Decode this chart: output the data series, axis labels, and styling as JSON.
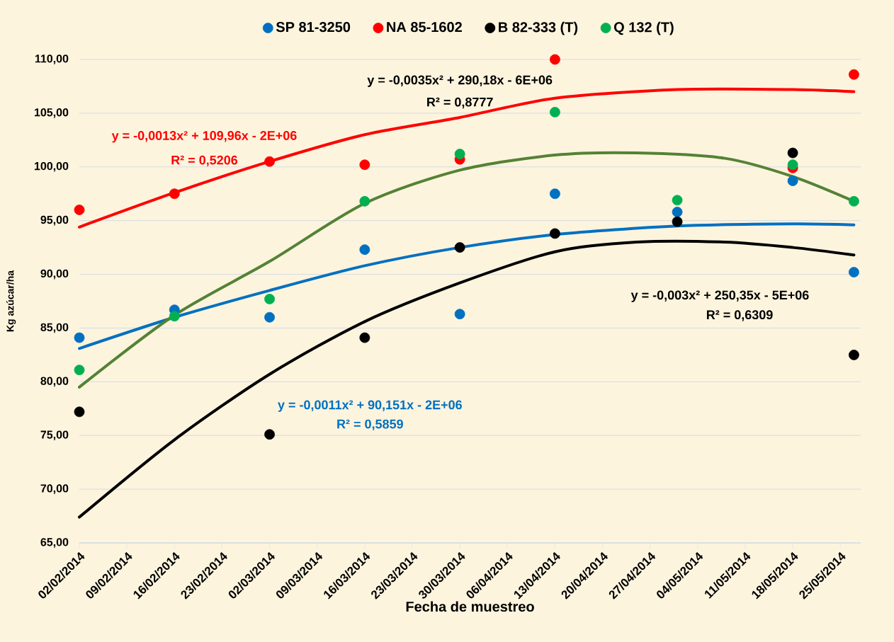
{
  "chart_data": {
    "type": "scatter",
    "xlabel": "Fecha de muestreo",
    "ylabel": "Kg azúcar/ha",
    "xlim": [
      "2014-02-02",
      "2014-05-28"
    ],
    "ylim": [
      65,
      110
    ],
    "xticks": [
      {
        "value": "2014-02-02",
        "label": "02/02/2014"
      },
      {
        "value": "2014-02-09",
        "label": "09/02/2014"
      },
      {
        "value": "2014-02-16",
        "label": "16/02/2014"
      },
      {
        "value": "2014-02-23",
        "label": "23/02/2014"
      },
      {
        "value": "2014-03-02",
        "label": "02/03/2014"
      },
      {
        "value": "2014-03-09",
        "label": "09/03/2014"
      },
      {
        "value": "2014-03-16",
        "label": "16/03/2014"
      },
      {
        "value": "2014-03-23",
        "label": "23/03/2014"
      },
      {
        "value": "2014-03-30",
        "label": "30/03/2014"
      },
      {
        "value": "2014-04-06",
        "label": "06/04/2014"
      },
      {
        "value": "2014-04-13",
        "label": "13/04/2014"
      },
      {
        "value": "2014-04-20",
        "label": "20/04/2014"
      },
      {
        "value": "2014-04-27",
        "label": "27/04/2014"
      },
      {
        "value": "2014-05-04",
        "label": "04/05/2014"
      },
      {
        "value": "2014-05-11",
        "label": "11/05/2014"
      },
      {
        "value": "2014-05-18",
        "label": "18/05/2014"
      },
      {
        "value": "2014-05-25",
        "label": "25/05/2014"
      }
    ],
    "yticks": [
      {
        "value": 65,
        "label": "65,00"
      },
      {
        "value": 70,
        "label": "70,00"
      },
      {
        "value": 75,
        "label": "75,00"
      },
      {
        "value": 80,
        "label": "80,00"
      },
      {
        "value": 85,
        "label": "85,00"
      },
      {
        "value": 90,
        "label": "90,00"
      },
      {
        "value": 95,
        "label": "95,00"
      },
      {
        "value": 100,
        "label": "100,00"
      },
      {
        "value": 105,
        "label": "105,00"
      },
      {
        "value": 110,
        "label": "110,00"
      }
    ],
    "x": [
      "2014-02-02",
      "2014-02-16",
      "2014-03-02",
      "2014-03-16",
      "2014-03-30",
      "2014-04-13",
      "2014-05-01",
      "2014-05-18",
      "2014-05-27"
    ],
    "series": [
      {
        "name": "SP 81-3250",
        "marker": "circle",
        "color": "#0070c0",
        "values": [
          84.1,
          86.7,
          86.0,
          92.3,
          86.3,
          97.5,
          95.8,
          98.7,
          90.2
        ]
      },
      {
        "name": "NA 85-1602",
        "marker": "circle",
        "color": "#ff0000",
        "values": [
          96.0,
          97.5,
          100.5,
          100.2,
          100.7,
          110.0,
          null,
          99.9,
          108.6
        ]
      },
      {
        "name": "B 82-333 (T)",
        "marker": "circle",
        "color": "#000000",
        "values": [
          77.2,
          null,
          75.1,
          84.1,
          92.5,
          93.8,
          94.9,
          101.3,
          82.5
        ]
      },
      {
        "name": "Q 132 (T)",
        "marker": "circle",
        "color": "#00b050",
        "values": [
          81.1,
          86.1,
          87.7,
          96.8,
          101.2,
          105.1,
          96.9,
          100.2,
          96.8
        ]
      },
      {
        "type": "line",
        "marker": "none",
        "color": "#ff0000",
        "x": [
          "2014-02-02",
          "2014-02-16",
          "2014-03-02",
          "2014-03-16",
          "2014-03-30",
          "2014-04-13",
          "2014-05-01",
          "2014-05-18",
          "2014-05-27"
        ],
        "values": [
          94.4,
          97.6,
          100.5,
          103.0,
          104.6,
          106.4,
          107.2,
          107.2,
          107.0
        ]
      },
      {
        "type": "line",
        "marker": "none",
        "color": "#0070c0",
        "x": [
          "2014-02-02",
          "2014-02-16",
          "2014-03-02",
          "2014-03-16",
          "2014-03-30",
          "2014-04-13",
          "2014-05-01",
          "2014-05-18",
          "2014-05-27"
        ],
        "values": [
          83.1,
          86.0,
          88.5,
          90.8,
          92.5,
          93.7,
          94.5,
          94.7,
          94.6
        ]
      },
      {
        "type": "line",
        "marker": "none",
        "color": "#000000",
        "x": [
          "2014-02-02",
          "2014-02-16",
          "2014-03-02",
          "2014-03-16",
          "2014-03-30",
          "2014-04-13",
          "2014-04-25",
          "2014-05-08",
          "2014-05-18",
          "2014-05-27"
        ],
        "values": [
          67.4,
          74.6,
          80.7,
          85.6,
          89.2,
          92.1,
          93.0,
          93.0,
          92.5,
          91.8
        ]
      },
      {
        "type": "line",
        "marker": "none",
        "color": "#548235",
        "x": [
          "2014-02-02",
          "2014-02-16",
          "2014-03-02",
          "2014-03-16",
          "2014-03-30",
          "2014-04-13",
          "2014-04-25",
          "2014-05-08",
          "2014-05-18",
          "2014-05-27"
        ],
        "values": [
          79.5,
          86.2,
          91.2,
          96.6,
          99.7,
          101.1,
          101.3,
          100.8,
          99.1,
          96.8
        ]
      }
    ],
    "annotations": [
      "y = -0,0013x² + 109,96x - 2E+06",
      "R² = 0,5206",
      "y = -0,0035x² + 290,18x - 6E+06",
      "R² = 0,8777",
      "y = -0,003x² + 250,35x - 5E+06",
      "R² = 0,6309",
      "y = -0,0011x² + 90,151x - 2E+06",
      "R² = 0,5859"
    ],
    "grid": "y",
    "legend": "top",
    "line_style": "solid"
  }
}
